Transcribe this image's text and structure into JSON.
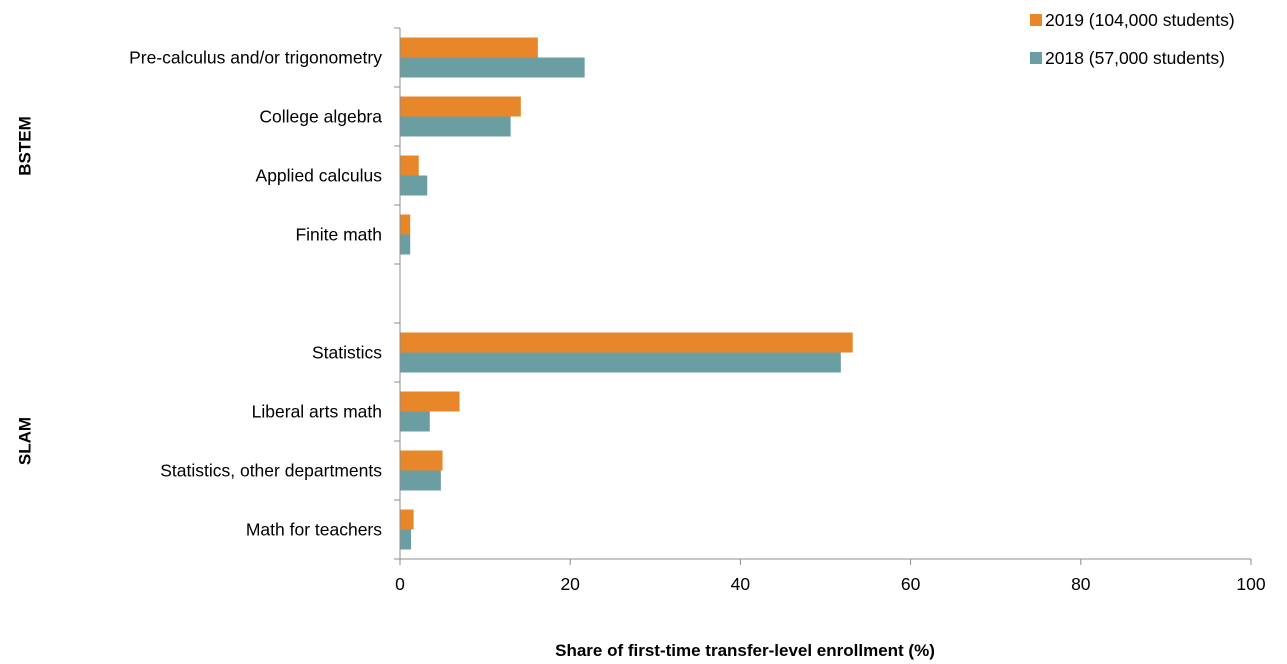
{
  "chart_data": {
    "type": "bar",
    "orientation": "horizontal",
    "groups": [
      {
        "name": "BSTEM",
        "categories": [
          "Pre-calculus and/or trigonometry",
          "College algebra",
          "Applied calculus",
          "Finite math"
        ]
      },
      {
        "name": "SLAM",
        "categories": [
          "Statistics",
          "Liberal arts math",
          "Statistics, other departments",
          "Math for teachers"
        ]
      }
    ],
    "categories": [
      "Pre-calculus and/or trigonometry",
      "College algebra",
      "Applied calculus",
      "Finite math",
      "Statistics",
      "Liberal arts math",
      "Statistics, other departments",
      "Math for teachers"
    ],
    "series": [
      {
        "name": "2019 (104,000 students)",
        "color": "#E8872A",
        "values": [
          16.2,
          14.2,
          2.2,
          1.2,
          53.2,
          7.0,
          5.0,
          1.6
        ]
      },
      {
        "name": "2018 (57,000 students)",
        "color": "#6A9EA3",
        "values": [
          21.7,
          13.0,
          3.2,
          1.2,
          51.8,
          3.5,
          4.8,
          1.3
        ]
      }
    ],
    "xlabel": "Share of first-time transfer-level enrollment (%)",
    "xlim": [
      0,
      100
    ],
    "xticks": [
      0,
      20,
      40,
      60,
      80,
      100
    ],
    "grid": false,
    "legend_position": "top-right"
  }
}
